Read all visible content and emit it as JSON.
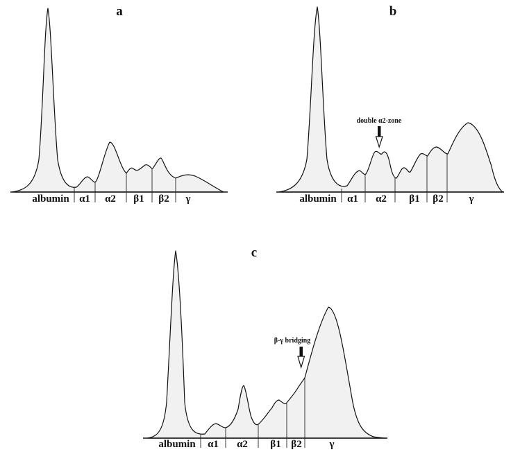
{
  "chart_data": [
    {
      "type": "area",
      "panel": "a",
      "fractions": [
        "albumin",
        "α1",
        "α2",
        "β1",
        "β2",
        "γ"
      ],
      "peaks": [
        {
          "fraction": "albumin",
          "height": 1.0
        },
        {
          "fraction": "α1",
          "height": 0.08
        },
        {
          "fraction": "α2",
          "height": 0.28
        },
        {
          "fraction": "β1",
          "height": 0.13
        },
        {
          "fraction": "β2",
          "height": 0.18
        },
        {
          "fraction": "γ",
          "height": 0.1
        }
      ],
      "annotation": ""
    },
    {
      "type": "area",
      "panel": "b",
      "fractions": [
        "albumin",
        "α1",
        "α2",
        "β1",
        "β2",
        "γ"
      ],
      "peaks": [
        {
          "fraction": "albumin",
          "height": 1.0
        },
        {
          "fraction": "α1",
          "height": 0.12
        },
        {
          "fraction": "α2",
          "height": 0.22
        },
        {
          "fraction": "β1",
          "height": 0.14
        },
        {
          "fraction": "β2",
          "height": 0.25
        },
        {
          "fraction": "γ",
          "height": 0.37
        }
      ],
      "annotation": "double α2-zone"
    },
    {
      "type": "area",
      "panel": "c",
      "fractions": [
        "albumin",
        "α1",
        "α2",
        "β1",
        "β2",
        "γ"
      ],
      "peaks": [
        {
          "fraction": "albumin",
          "height": 1.0
        },
        {
          "fraction": "α1",
          "height": 0.07
        },
        {
          "fraction": "α2",
          "height": 0.27
        },
        {
          "fraction": "β1",
          "height": 0.2
        },
        {
          "fraction": "β2",
          "height": 0.3
        },
        {
          "fraction": "γ",
          "height": 0.72
        }
      ],
      "annotation": "β-γ bridging"
    }
  ]
}
